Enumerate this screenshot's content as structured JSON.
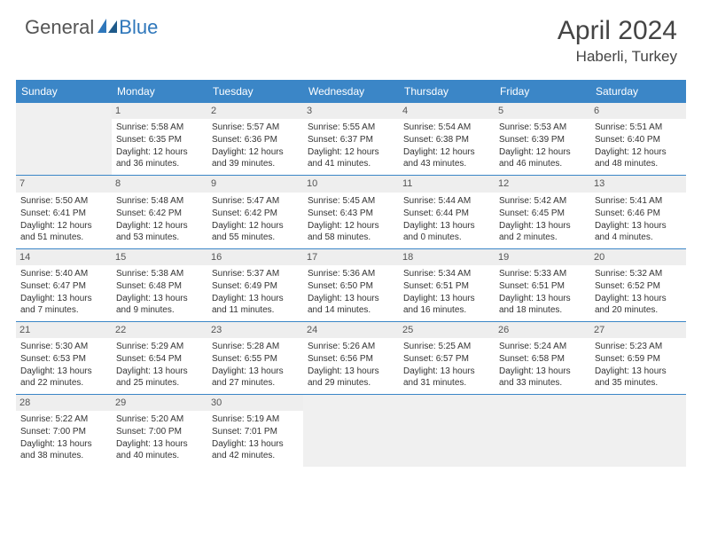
{
  "logo": {
    "general": "General",
    "blue": "Blue"
  },
  "title": "April 2024",
  "location": "Haberli, Turkey",
  "dayheads": [
    "Sunday",
    "Monday",
    "Tuesday",
    "Wednesday",
    "Thursday",
    "Friday",
    "Saturday"
  ],
  "labels": {
    "sunrise": "Sunrise:",
    "sunset": "Sunset:",
    "daylight": "Daylight:"
  },
  "colors": {
    "header_bg": "#3b86c7",
    "border": "#3b86c7",
    "daynum_bg": "#eeeeee",
    "empty_bg": "#f0f0f0",
    "text": "#333333",
    "title": "#444444"
  },
  "days": [
    {
      "n": 1,
      "sr": "5:58 AM",
      "ss": "6:35 PM",
      "dl": "12 hours and 36 minutes."
    },
    {
      "n": 2,
      "sr": "5:57 AM",
      "ss": "6:36 PM",
      "dl": "12 hours and 39 minutes."
    },
    {
      "n": 3,
      "sr": "5:55 AM",
      "ss": "6:37 PM",
      "dl": "12 hours and 41 minutes."
    },
    {
      "n": 4,
      "sr": "5:54 AM",
      "ss": "6:38 PM",
      "dl": "12 hours and 43 minutes."
    },
    {
      "n": 5,
      "sr": "5:53 AM",
      "ss": "6:39 PM",
      "dl": "12 hours and 46 minutes."
    },
    {
      "n": 6,
      "sr": "5:51 AM",
      "ss": "6:40 PM",
      "dl": "12 hours and 48 minutes."
    },
    {
      "n": 7,
      "sr": "5:50 AM",
      "ss": "6:41 PM",
      "dl": "12 hours and 51 minutes."
    },
    {
      "n": 8,
      "sr": "5:48 AM",
      "ss": "6:42 PM",
      "dl": "12 hours and 53 minutes."
    },
    {
      "n": 9,
      "sr": "5:47 AM",
      "ss": "6:42 PM",
      "dl": "12 hours and 55 minutes."
    },
    {
      "n": 10,
      "sr": "5:45 AM",
      "ss": "6:43 PM",
      "dl": "12 hours and 58 minutes."
    },
    {
      "n": 11,
      "sr": "5:44 AM",
      "ss": "6:44 PM",
      "dl": "13 hours and 0 minutes."
    },
    {
      "n": 12,
      "sr": "5:42 AM",
      "ss": "6:45 PM",
      "dl": "13 hours and 2 minutes."
    },
    {
      "n": 13,
      "sr": "5:41 AM",
      "ss": "6:46 PM",
      "dl": "13 hours and 4 minutes."
    },
    {
      "n": 14,
      "sr": "5:40 AM",
      "ss": "6:47 PM",
      "dl": "13 hours and 7 minutes."
    },
    {
      "n": 15,
      "sr": "5:38 AM",
      "ss": "6:48 PM",
      "dl": "13 hours and 9 minutes."
    },
    {
      "n": 16,
      "sr": "5:37 AM",
      "ss": "6:49 PM",
      "dl": "13 hours and 11 minutes."
    },
    {
      "n": 17,
      "sr": "5:36 AM",
      "ss": "6:50 PM",
      "dl": "13 hours and 14 minutes."
    },
    {
      "n": 18,
      "sr": "5:34 AM",
      "ss": "6:51 PM",
      "dl": "13 hours and 16 minutes."
    },
    {
      "n": 19,
      "sr": "5:33 AM",
      "ss": "6:51 PM",
      "dl": "13 hours and 18 minutes."
    },
    {
      "n": 20,
      "sr": "5:32 AM",
      "ss": "6:52 PM",
      "dl": "13 hours and 20 minutes."
    },
    {
      "n": 21,
      "sr": "5:30 AM",
      "ss": "6:53 PM",
      "dl": "13 hours and 22 minutes."
    },
    {
      "n": 22,
      "sr": "5:29 AM",
      "ss": "6:54 PM",
      "dl": "13 hours and 25 minutes."
    },
    {
      "n": 23,
      "sr": "5:28 AM",
      "ss": "6:55 PM",
      "dl": "13 hours and 27 minutes."
    },
    {
      "n": 24,
      "sr": "5:26 AM",
      "ss": "6:56 PM",
      "dl": "13 hours and 29 minutes."
    },
    {
      "n": 25,
      "sr": "5:25 AM",
      "ss": "6:57 PM",
      "dl": "13 hours and 31 minutes."
    },
    {
      "n": 26,
      "sr": "5:24 AM",
      "ss": "6:58 PM",
      "dl": "13 hours and 33 minutes."
    },
    {
      "n": 27,
      "sr": "5:23 AM",
      "ss": "6:59 PM",
      "dl": "13 hours and 35 minutes."
    },
    {
      "n": 28,
      "sr": "5:22 AM",
      "ss": "7:00 PM",
      "dl": "13 hours and 38 minutes."
    },
    {
      "n": 29,
      "sr": "5:20 AM",
      "ss": "7:00 PM",
      "dl": "13 hours and 40 minutes."
    },
    {
      "n": 30,
      "sr": "5:19 AM",
      "ss": "7:01 PM",
      "dl": "13 hours and 42 minutes."
    }
  ],
  "start_weekday": 1,
  "weeks": 5
}
